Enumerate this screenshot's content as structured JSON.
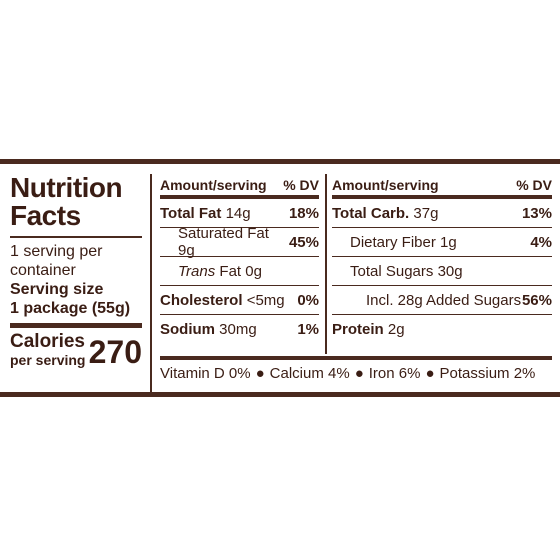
{
  "facts": {
    "title1": "Nutrition",
    "title2": "Facts",
    "servings_line1": "1 serving per",
    "servings_line2": "container",
    "serving_size_label": "Serving size",
    "serving_size_value": "1 package (55g)",
    "calories_label": "Calories",
    "calories_sub": "per serving",
    "calories_value": "270"
  },
  "header": {
    "amount": "Amount/serving",
    "dv": "% DV"
  },
  "left_rows": [
    {
      "name": "Total Fat",
      "amount": "14g",
      "dv": "18%"
    },
    {
      "name": "Saturated Fat",
      "amount": "9g",
      "dv": "45%"
    },
    {
      "name": "Trans",
      "name_rest": "Fat",
      "amount": "0g",
      "dv": ""
    },
    {
      "name": "Cholesterol",
      "amount": "<5mg",
      "dv": "0%"
    },
    {
      "name": "Sodium",
      "amount": "30mg",
      "dv": "1%"
    }
  ],
  "right_rows": [
    {
      "name": "Total Carb.",
      "amount": "37g",
      "dv": "13%"
    },
    {
      "name": "Dietary Fiber",
      "amount": "1g",
      "dv": "4%"
    },
    {
      "name": "Total Sugars",
      "amount": "30g",
      "dv": ""
    },
    {
      "name": "Incl. 28g Added Sugars",
      "amount": "",
      "dv": "56%"
    },
    {
      "name": "Protein",
      "amount": "2g",
      "dv": ""
    }
  ],
  "vitamins": [
    "Vitamin D 0%",
    "Calcium 4%",
    "Iron 6%",
    "Potassium 2%"
  ],
  "bullet": "●"
}
